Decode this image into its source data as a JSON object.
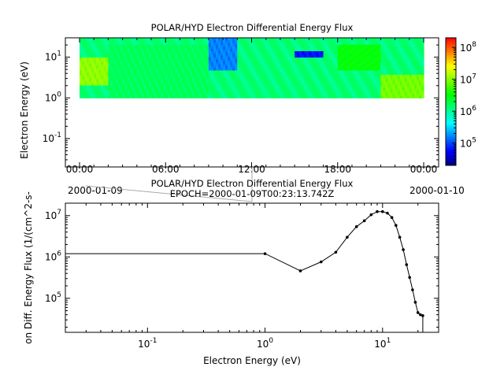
{
  "top_panel": {
    "title": "POLAR/HYD  Electron Differential Energy Flux",
    "ylabel": "Electron Energy (eV)",
    "colorbar": {
      "ticks": [
        {
          "base": "10",
          "exp": "5",
          "value": 100000
        },
        {
          "base": "10",
          "exp": "6",
          "value": 1000000
        },
        {
          "base": "10",
          "exp": "7",
          "value": 10000000
        },
        {
          "base": "10",
          "exp": "8",
          "value": 100000000
        }
      ],
      "range": [
        20000,
        200000000
      ],
      "colors": [
        "#00007f",
        "#0000ff",
        "#007fff",
        "#00ffff",
        "#00ff7f",
        "#00ff00",
        "#7fff00",
        "#ffff00",
        "#ff7f00",
        "#ff0000"
      ]
    },
    "ytick_labels": [
      {
        "base": "10",
        "exp": "1",
        "value": 10
      },
      {
        "base": "10",
        "exp": "0",
        "value": 1
      },
      {
        "base": "10",
        "exp": "-1",
        "value": 0.1
      }
    ],
    "ylim": [
      0.02,
      30
    ],
    "xtick_labels": [
      "00:00",
      "06:00",
      "12:00",
      "18:00",
      "00:00"
    ],
    "date_start": "2000-01-09",
    "date_end": "2000-01-10",
    "data_energy_range": [
      1,
      30
    ],
    "cursor_time": "00:23:13"
  },
  "bottom_panel": {
    "title": "POLAR/HYD  Electron Differential Energy Flux",
    "subtitle": "EPOCH=2000-01-09T00:23:13.742Z",
    "ylabel": "on Diff. Energy Flux (1/(cm^2-s-",
    "xlabel": "Electron Energy (eV)",
    "xtick_labels": [
      {
        "base": "10",
        "exp": "-1",
        "value": 0.1
      },
      {
        "base": "10",
        "exp": "0",
        "value": 1
      },
      {
        "base": "10",
        "exp": "1",
        "value": 10
      }
    ],
    "ytick_labels": [
      {
        "base": "10",
        "exp": "5",
        "value": 100000
      },
      {
        "base": "10",
        "exp": "6",
        "value": 1000000
      },
      {
        "base": "10",
        "exp": "7",
        "value": 10000000
      }
    ]
  },
  "chart_data": [
    {
      "type": "heatmap",
      "title": "POLAR/HYD  Electron Differential Energy Flux",
      "xlabel": "",
      "ylabel": "Electron Energy (eV)",
      "y_scale": "log",
      "x_range": [
        "2000-01-09T00:00",
        "2000-01-10T00:00"
      ],
      "ylim": [
        0.02,
        30
      ],
      "color_scale": "log",
      "color_range": [
        20000,
        200000000
      ],
      "note_regions": [
        {
          "time": "00:00-02:00",
          "energy": "2-10 eV",
          "level": 10000000
        },
        {
          "time": "02:00-09:00",
          "energy": "1-20 eV",
          "level": 1500000
        },
        {
          "time": "09:00-11:00",
          "energy": "5-30 eV",
          "level": 150000
        },
        {
          "time": "15:00-17:00",
          "energy": "10-15 eV",
          "level": 60000
        },
        {
          "time": "18:00-21:00",
          "energy": "5-20 eV",
          "level": 3000000
        },
        {
          "time": "21:00-24:00",
          "energy": "1-4 eV",
          "level": 8000000
        }
      ]
    },
    {
      "type": "line",
      "title": "POLAR/HYD  Electron Differential Energy Flux",
      "subtitle": "EPOCH=2000-01-09T00:23:13.742Z",
      "xlabel": "Electron Energy (eV)",
      "ylabel": "on Diff. Energy Flux (1/(cm^2-s-",
      "x_scale": "log",
      "y_scale": "log",
      "xlim": [
        0.02,
        30
      ],
      "ylim": [
        15000,
        20000000
      ],
      "series": [
        {
          "x": [
            0.02,
            1.0,
            2.0,
            3.0,
            4.0,
            5.0,
            6.0,
            7.0,
            8.0,
            9.0,
            10.0,
            11.0,
            12.0,
            13.0,
            14.0,
            15.0,
            16.0,
            17.0,
            18.0,
            19.0,
            20.0,
            21.0,
            22.0
          ],
          "y": [
            1200000,
            1200000,
            460000,
            760000,
            1300000,
            3000000,
            5400000,
            7500000,
            10500000,
            12500000,
            12500000,
            11500000,
            9000000,
            5800000,
            3000000,
            1500000,
            650000,
            320000,
            160000,
            80000,
            45000,
            40000,
            38000
          ]
        }
      ]
    }
  ]
}
